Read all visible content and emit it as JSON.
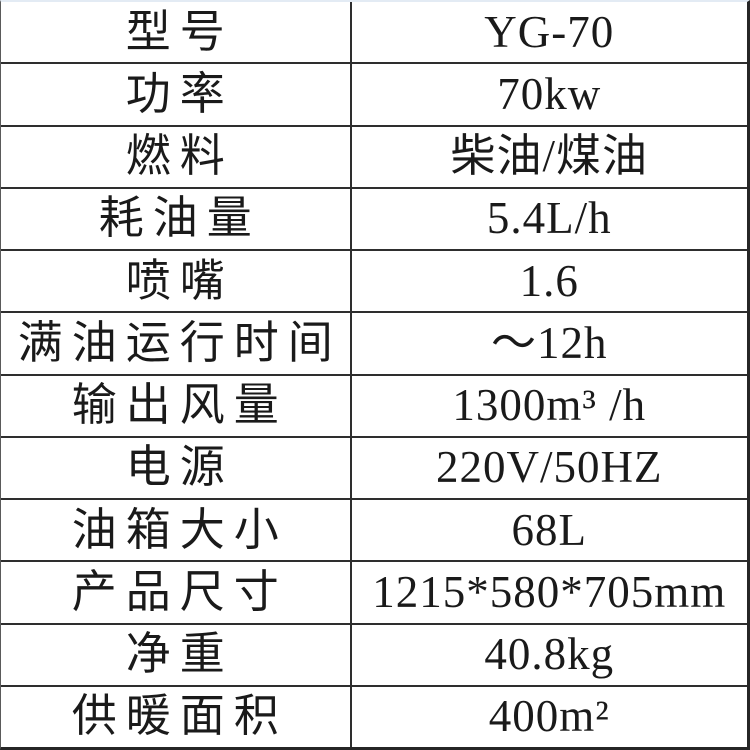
{
  "page": {
    "background_color": "#ffffff",
    "text_color": "#1a1a1a",
    "grid_color": "#2e2e2e",
    "top_edge_color": "#e3ebf4"
  },
  "table": {
    "columns": [
      "spec-name",
      "spec-value"
    ],
    "rows": [
      {
        "label": "型号",
        "value": "YG-70"
      },
      {
        "label": "功率",
        "value": "70kw"
      },
      {
        "label": "燃料",
        "value": "柴油/煤油"
      },
      {
        "label": "耗油量",
        "value": "5.4L/h"
      },
      {
        "label": "喷嘴",
        "value": "1.6"
      },
      {
        "label": "满油运行时间",
        "value": "～12h"
      },
      {
        "label": "输出风量",
        "value": "1300m³ /h"
      },
      {
        "label": "电源",
        "value": "220V/50HZ"
      },
      {
        "label": "油箱大小",
        "value": "68L"
      },
      {
        "label": "产品尺寸",
        "value": "1215*580*705mm"
      },
      {
        "label": "净重",
        "value": "40.8kg"
      },
      {
        "label": "供暖面积",
        "value": "400m²"
      }
    ]
  }
}
